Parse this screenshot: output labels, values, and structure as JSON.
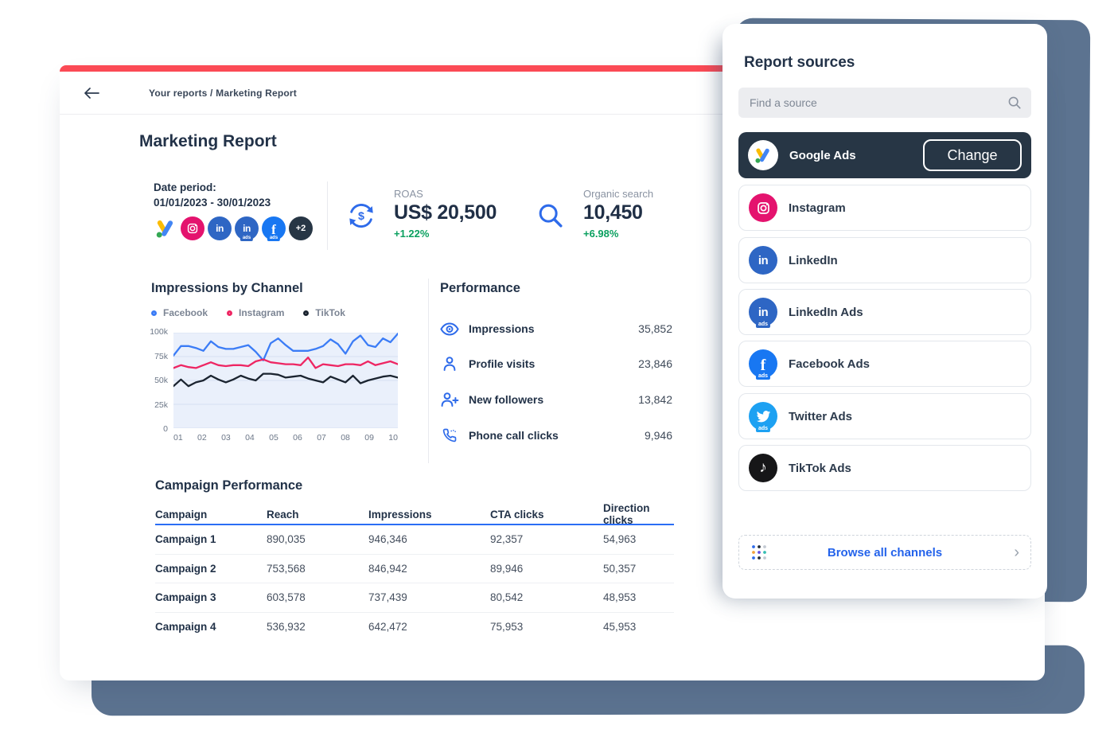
{
  "colors": {
    "accent_red": "#fb4a55",
    "slate_shadow": "#5c7390",
    "navy": "#223248",
    "blue": "#2e6bea",
    "green": "#0aa05f",
    "table_header_rule": "#2a6df5",
    "selected_card_bg": "#273645"
  },
  "icons": {
    "linkedin_glyph": "in",
    "facebook_glyph": "f",
    "tiktok_note": "♪",
    "ads_chip": "ads",
    "more_badge": "+2",
    "chevron_right": "›"
  },
  "header": {
    "breadcrumb": "Your reports / Marketing Report"
  },
  "report": {
    "title": "Marketing Report",
    "date_period": {
      "label": "Date period:",
      "value": "01/01/2023 - 30/01/2023"
    },
    "metrics": [
      {
        "label": "ROAS",
        "value": "US$ 20,500",
        "delta": "+1.22%"
      },
      {
        "label": "Organic search",
        "value": "10,450",
        "delta": "+6.98%"
      }
    ],
    "performance": {
      "title": "Performance",
      "rows": [
        {
          "label": "Impressions",
          "value": "35,852"
        },
        {
          "label": "Profile visits",
          "value": "23,846"
        },
        {
          "label": "New followers",
          "value": "13,842"
        },
        {
          "label": "Phone call clicks",
          "value": "9,946"
        }
      ]
    },
    "campaign_table": {
      "title": "Campaign Performance",
      "columns": [
        "Campaign",
        "Reach",
        "Impressions",
        "CTA clicks",
        "Direction clicks"
      ],
      "rows": [
        [
          "Campaign 1",
          "890,035",
          "946,346",
          "92,357",
          "54,963"
        ],
        [
          "Campaign 2",
          "753,568",
          "846,942",
          "89,946",
          "50,357"
        ],
        [
          "Campaign 3",
          "603,578",
          "737,439",
          "80,542",
          "48,953"
        ],
        [
          "Campaign 4",
          "536,932",
          "642,472",
          "75,953",
          "45,953"
        ]
      ]
    }
  },
  "chart_data": {
    "type": "line",
    "title": "Impressions by Channel",
    "legend_position": "top",
    "plot_bg": "#eaf0fb",
    "grid": true,
    "ylim": [
      0,
      100
    ],
    "y_unit": "k impressions",
    "y_gridlines": [
      0,
      25,
      50,
      75,
      100
    ],
    "y_tick_labels": [
      "100k",
      "75k",
      "50k",
      "25k",
      "0"
    ],
    "x_tick_labels": [
      "01",
      "02",
      "03",
      "04",
      "05",
      "06",
      "07",
      "08",
      "09",
      "10"
    ],
    "series": [
      {
        "name": "Facebook",
        "color": "#3b7cf6",
        "values": [
          76,
          86,
          86,
          84,
          81,
          91,
          85,
          83,
          83,
          85,
          87,
          80,
          71,
          89,
          94,
          87,
          81,
          81,
          81,
          83,
          86,
          93,
          88,
          78,
          91,
          97,
          87,
          85,
          94,
          90,
          99
        ]
      },
      {
        "name": "Instagram",
        "color": "#ee2663",
        "values": [
          63,
          66,
          64,
          63,
          66,
          69,
          66,
          65,
          66,
          66,
          65,
          70,
          72,
          69,
          68,
          67,
          67,
          66,
          74,
          63,
          67,
          66,
          65,
          67,
          67,
          66,
          70,
          66,
          68,
          70,
          67
        ]
      },
      {
        "name": "TikTok",
        "color": "#1b2430",
        "values": [
          44,
          51,
          44,
          48,
          50,
          55,
          51,
          48,
          51,
          55,
          52,
          50,
          57,
          57,
          56,
          53,
          54,
          55,
          52,
          50,
          48,
          54,
          51,
          48,
          55,
          47,
          50,
          52,
          54,
          55,
          53
        ]
      }
    ]
  },
  "sources_panel": {
    "title": "Report sources",
    "search_placeholder": "Find a source",
    "selected": {
      "label": "Google Ads",
      "action_label": "Change"
    },
    "items": [
      {
        "label": "Instagram"
      },
      {
        "label": "LinkedIn"
      },
      {
        "label": "LinkedIn Ads"
      },
      {
        "label": "Facebook Ads"
      },
      {
        "label": "Twitter Ads"
      },
      {
        "label": "TikTok Ads"
      }
    ],
    "browse_label": "Browse all channels"
  }
}
